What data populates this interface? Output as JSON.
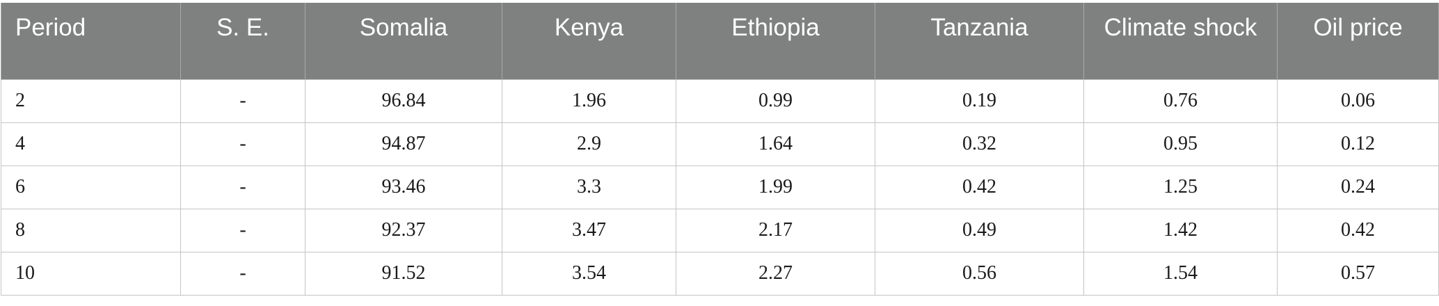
{
  "table": {
    "headers": [
      "Period",
      "S. E.",
      "Somalia",
      "Kenya",
      "Ethiopia",
      "Tanzania",
      "Climate shock",
      "Oil price"
    ],
    "rows": [
      [
        "2",
        "-",
        "96.84",
        "1.96",
        "0.99",
        "0.19",
        "0.76",
        "0.06"
      ],
      [
        "4",
        "-",
        "94.87",
        "2.9",
        "1.64",
        "0.32",
        "0.95",
        "0.12"
      ],
      [
        "6",
        "-",
        "93.46",
        "3.3",
        "1.99",
        "0.42",
        "1.25",
        "0.24"
      ],
      [
        "8",
        "-",
        "92.37",
        "3.47",
        "2.17",
        "0.49",
        "1.42",
        "0.42"
      ],
      [
        "10",
        "-",
        "91.52",
        "3.54",
        "2.27",
        "0.56",
        "1.54",
        "0.57"
      ]
    ]
  },
  "colors": {
    "header_bg": "#7f8180",
    "header_text": "#ffffff",
    "border": "#c4c4c4"
  }
}
